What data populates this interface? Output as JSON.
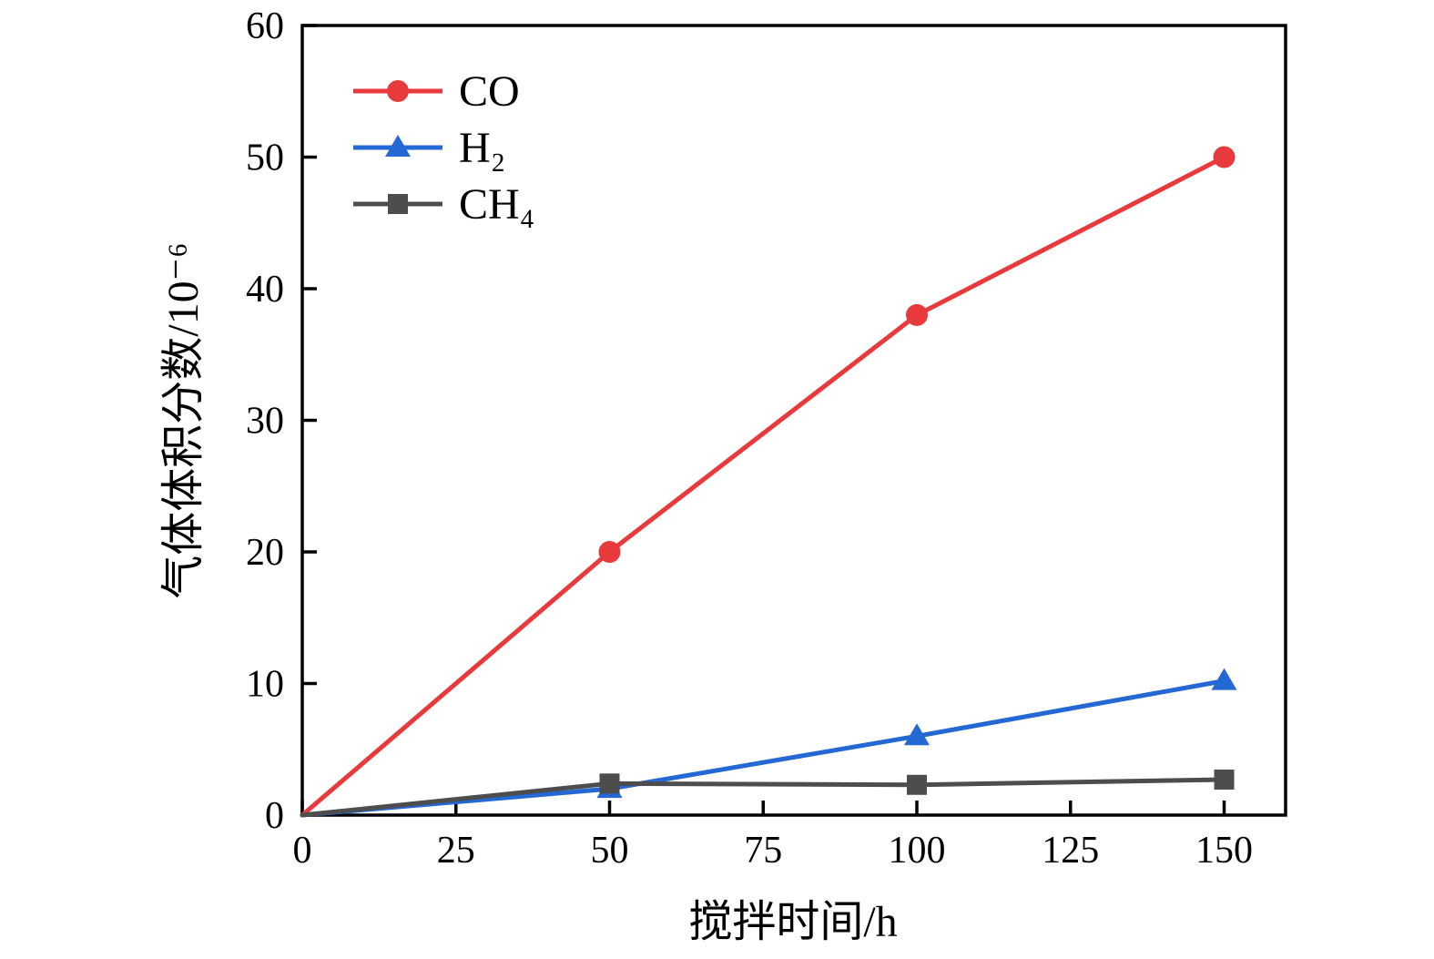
{
  "page": {
    "background": "#ffffff"
  },
  "chart_data": {
    "type": "line",
    "x": [
      0,
      50,
      100,
      150
    ],
    "series": [
      {
        "name": "CO",
        "marker": "circle",
        "color": "#e83a3c",
        "values": [
          0,
          20,
          38,
          50
        ]
      },
      {
        "name": "H₂",
        "marker": "triangle",
        "color": "#2468d4",
        "values": [
          0,
          2,
          6,
          10.2
        ]
      },
      {
        "name": "CH₄",
        "marker": "square",
        "color": "#4d4d4d",
        "values": [
          0,
          2.4,
          2.3,
          2.7
        ]
      }
    ],
    "title": "",
    "xlabel": "搅拌时间/h",
    "ylabel": "气体体积分数/10⁻⁶",
    "xlim": [
      0,
      160
    ],
    "ylim": [
      0,
      60
    ],
    "xticks": [
      0,
      25,
      50,
      75,
      100,
      125,
      150
    ],
    "yticks": [
      0,
      10,
      20,
      30,
      40,
      50,
      60
    ],
    "grid": false,
    "legend_position": "top-left",
    "axis_color": "#000000"
  }
}
